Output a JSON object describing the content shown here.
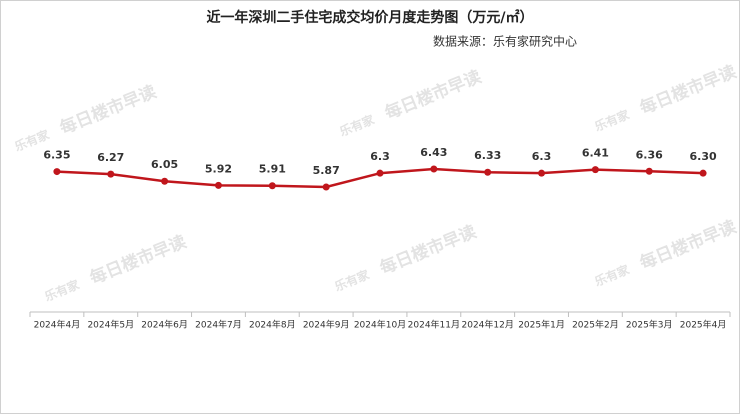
{
  "chart_data": {
    "type": "line",
    "title": "近一年深圳二手住宅成交均价月度走势图（万元/㎡）",
    "subtitle": "数据来源：乐有家研究中心",
    "watermark": {
      "brand": "乐有家",
      "text": "每日楼市早读"
    },
    "categories": [
      "2024年4月",
      "2024年5月",
      "2024年6月",
      "2024年7月",
      "2024年8月",
      "2024年9月",
      "2024年10月",
      "2024年11月",
      "2024年12月",
      "2025年1月",
      "2025年2月",
      "2025年3月",
      "2025年4月"
    ],
    "values": [
      6.35,
      6.27,
      6.05,
      5.92,
      5.91,
      5.87,
      6.3,
      6.43,
      6.33,
      6.3,
      6.41,
      6.36,
      6.3
    ],
    "value_labels": [
      "6.35",
      "6.27",
      "6.05",
      "5.92",
      "5.91",
      "5.87",
      "6.3",
      "6.43",
      "6.33",
      "6.3",
      "6.41",
      "6.36",
      "6.30"
    ],
    "color": "#c0161c"
  }
}
